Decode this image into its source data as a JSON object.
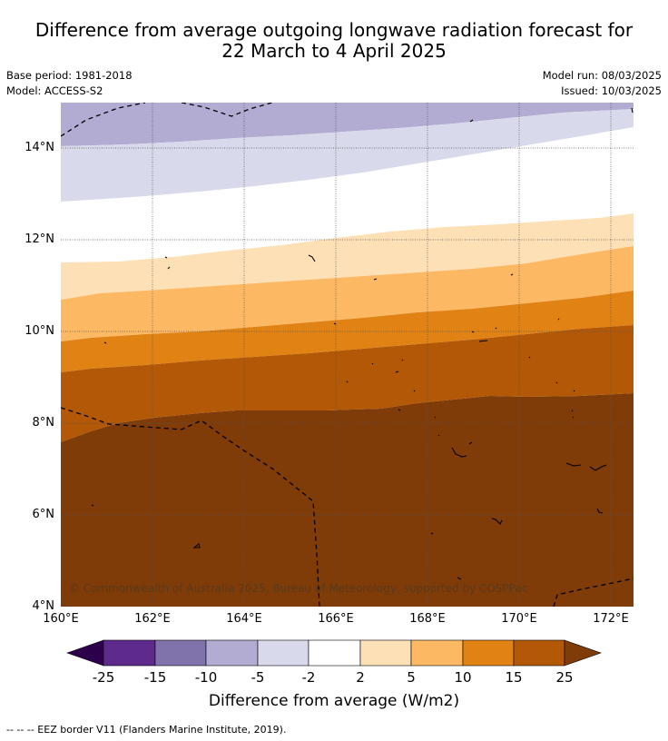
{
  "title_line1": "Difference from average outgoing longwave radiation forecast for",
  "title_line2": "22 March to 4 April 2025",
  "base_period": "Base period: 1981-2018",
  "model": "Model: ACCESS-S2",
  "model_run": "Model run: 08/03/2025",
  "issued": "Issued: 10/03/2025",
  "credit": "© Commonwealth of Australia 2025, Bureau of Meteorology, supported by COSPPac",
  "footnote": "--  --  -- EEZ border V11 (Flanders Marine Institute, 2019).",
  "map": {
    "lat_range": [
      4,
      15
    ],
    "lon_range": [
      160,
      172.5
    ],
    "lat_ticks": [
      "4°N",
      "6°N",
      "8°N",
      "10°N",
      "12°N",
      "14°N"
    ],
    "lon_ticks": [
      "160°E",
      "162°E",
      "164°E",
      "166°E",
      "168°E",
      "170°E",
      "172°E"
    ]
  },
  "colorbar": {
    "title": "Difference from average (W/m2)",
    "labels": [
      "-25",
      "-15",
      "-10",
      "-5",
      "-2",
      "2",
      "5",
      "10",
      "15",
      "25"
    ],
    "colors": [
      "#2d004b",
      "#5e2a8c",
      "#8073ac",
      "#b2abd2",
      "#d8daeb",
      "#ffffff",
      "#fee0b6",
      "#fdb863",
      "#e08214",
      "#b35806",
      "#7f3b08"
    ]
  }
}
